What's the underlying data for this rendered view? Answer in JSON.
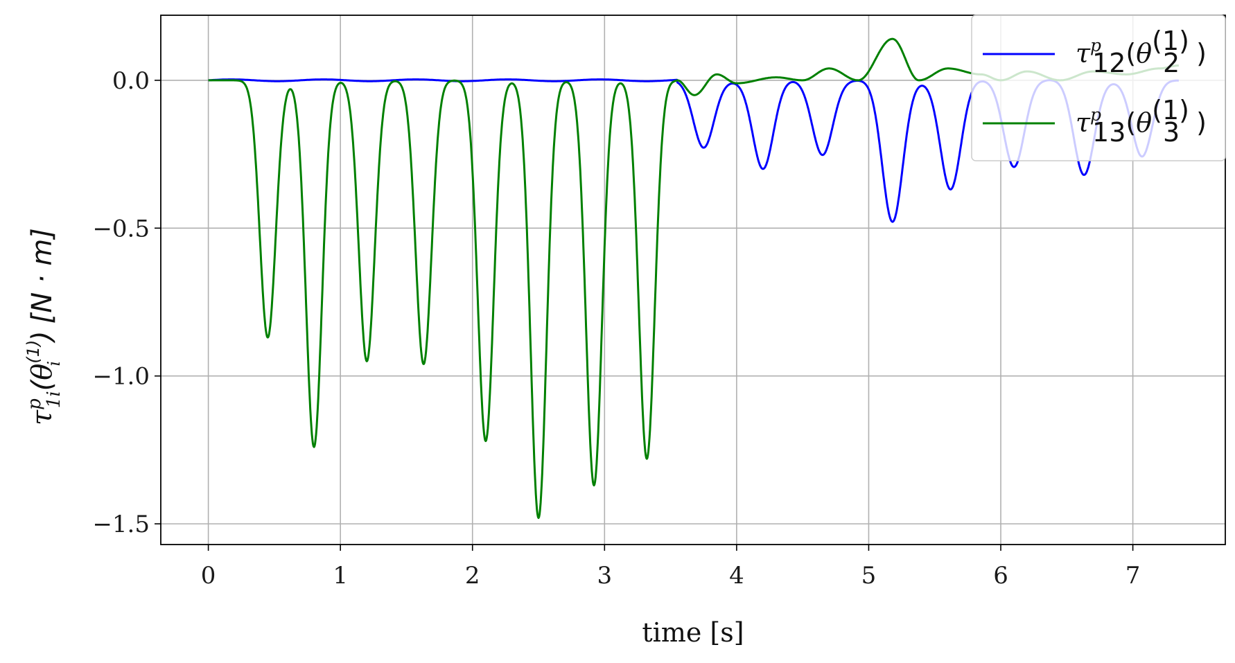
{
  "chart_data": {
    "type": "line",
    "title": "",
    "xlabel": "time [s]",
    "ylabel": "τ^p_{1i}(θ_i^{(1)}) [N · m]",
    "xlim": [
      -0.36,
      7.7
    ],
    "ylim": [
      -1.57,
      0.22
    ],
    "xticks": [
      0,
      1,
      2,
      3,
      4,
      5,
      6,
      7
    ],
    "xtick_labels": [
      "0",
      "1",
      "2",
      "3",
      "4",
      "5",
      "6",
      "7"
    ],
    "yticks": [
      0.0,
      -0.5,
      -1.0,
      -1.5
    ],
    "ytick_labels": [
      "0.0",
      "−0.5",
      "−1.0",
      "−1.5"
    ],
    "grid": true,
    "legend_position": "top-right",
    "series": [
      {
        "name": "τ^p_12(θ_2^(1))",
        "color": "#0000ff",
        "segments": [
          {
            "t_start": 0.0,
            "t_end": 3.55,
            "baseline": 0.0,
            "amplitude": 0.0
          }
        ],
        "dips": [
          {
            "t": 3.75,
            "y": -0.23
          },
          {
            "t": 4.2,
            "y": -0.3
          },
          {
            "t": 4.65,
            "y": -0.25
          },
          {
            "t": 5.18,
            "y": -0.48
          },
          {
            "t": 5.62,
            "y": -0.37
          },
          {
            "t": 6.1,
            "y": -0.29
          },
          {
            "t": 6.63,
            "y": -0.32
          },
          {
            "t": 7.07,
            "y": -0.26
          }
        ],
        "end_t": 7.35
      },
      {
        "name": "τ^p_13(θ_3^(1))",
        "color": "#008000",
        "dips": [
          {
            "t": 0.45,
            "y": -0.87
          },
          {
            "t": 0.8,
            "y": -1.24
          },
          {
            "t": 1.2,
            "y": -0.95
          },
          {
            "t": 1.63,
            "y": -0.96
          },
          {
            "t": 2.1,
            "y": -1.22
          },
          {
            "t": 2.5,
            "y": -1.48
          },
          {
            "t": 2.92,
            "y": -1.37
          },
          {
            "t": 3.32,
            "y": -1.28
          }
        ],
        "tail": [
          {
            "t": 3.68,
            "y": -0.05
          },
          {
            "t": 3.85,
            "y": 0.02
          },
          {
            "t": 4.0,
            "y": -0.01
          },
          {
            "t": 4.3,
            "y": 0.01
          },
          {
            "t": 4.5,
            "y": 0.0
          },
          {
            "t": 4.7,
            "y": 0.04
          },
          {
            "t": 4.92,
            "y": 0.0
          },
          {
            "t": 5.18,
            "y": 0.14
          },
          {
            "t": 5.38,
            "y": 0.0
          },
          {
            "t": 5.6,
            "y": 0.04
          },
          {
            "t": 5.85,
            "y": 0.02
          },
          {
            "t": 6.0,
            "y": 0.0
          },
          {
            "t": 6.2,
            "y": 0.03
          },
          {
            "t": 6.45,
            "y": 0.0
          },
          {
            "t": 6.7,
            "y": 0.03
          },
          {
            "t": 6.95,
            "y": 0.02
          },
          {
            "t": 7.2,
            "y": 0.04
          },
          {
            "t": 7.35,
            "y": 0.05
          }
        ],
        "end_t": 7.35
      }
    ]
  },
  "legend": {
    "items": [
      {
        "sym": "τ",
        "sup": "p",
        "sub": "12",
        "arg_open": "(",
        "theta": "θ",
        "theta_sup": "(1)",
        "theta_sub": "2",
        "arg_close": ")"
      },
      {
        "sym": "τ",
        "sup": "p",
        "sub": "13",
        "arg_open": "(",
        "theta": "θ",
        "theta_sup": "(1)",
        "theta_sub": "3",
        "arg_close": ")"
      }
    ]
  },
  "ylabel_parts": {
    "sym": "τ",
    "sup": "p",
    "sub": "1i",
    "open": "(",
    "theta": "θ",
    "theta_sup": "(1)",
    "theta_sub": "i",
    "close": ")",
    "unit": "[N · m]"
  }
}
